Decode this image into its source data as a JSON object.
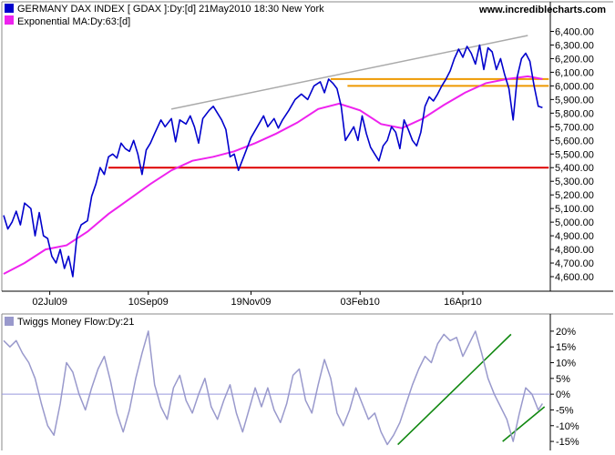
{
  "site": "www.incrediblecharts.com",
  "colors": {
    "price": "#0000cc",
    "ema": "#ee22ee",
    "support": "#dd0000",
    "resistance": "#ee9900",
    "trend_gray": "#aaaaaa",
    "mf": "#9999cc",
    "mf_trend": "#118811",
    "zero_line": "#9999dd"
  },
  "chart_data": [
    {
      "type": "line",
      "legend": [
        {
          "text": "GERMANY DAX INDEX [ GDAX ]:Dy:[d]  21May2010 18:30 New York",
          "color": "#0000cc"
        },
        {
          "text": "Exponential MA:Dy:63:[d]",
          "color": "#ee22ee"
        }
      ],
      "x_tick_labels": [
        "02Jul09",
        "10Sep09",
        "19Nov09",
        "03Feb10",
        "16Apr10"
      ],
      "x_tick_positions": [
        22,
        69,
        118,
        170,
        219
      ],
      "x_range": [
        0,
        259
      ],
      "y_tick_labels": [
        "6,400.00",
        "6,300.00",
        "6,200.00",
        "6,100.00",
        "6,000.00",
        "5,900.00",
        "5,800.00",
        "5,700.00",
        "5,600.00",
        "5,500.00",
        "5,400.00",
        "5,300.00",
        "5,200.00",
        "5,100.00",
        "5,000.00",
        "4,900.00",
        "4,800.00",
        "4,700.00",
        "4,600.00"
      ],
      "ylim": [
        4520,
        6430
      ],
      "grid": false,
      "series": [
        {
          "name": "GERMANY DAX INDEX",
          "color": "#0000cc",
          "x": [
            0,
            2,
            4,
            6,
            8,
            10,
            13,
            15,
            17,
            19,
            21,
            23,
            25,
            27,
            29,
            31,
            33,
            35,
            37,
            40,
            42,
            44,
            46,
            48,
            50,
            52,
            54,
            56,
            58,
            60,
            62,
            64,
            66,
            68,
            70,
            72,
            75,
            77,
            80,
            82,
            84,
            87,
            89,
            91,
            93,
            95,
            98,
            100,
            102,
            104,
            106,
            108,
            110,
            112,
            115,
            118,
            121,
            124,
            126,
            129,
            131,
            133,
            136,
            139,
            142,
            145,
            148,
            151,
            153,
            155,
            157,
            159,
            161,
            163,
            165,
            167,
            169,
            171,
            173,
            175,
            177,
            179,
            181,
            183,
            185,
            187,
            189,
            191,
            193,
            195,
            197,
            199,
            201,
            203,
            205,
            207,
            209,
            211,
            213,
            215,
            217,
            219,
            221,
            223,
            225,
            227,
            229,
            231,
            233,
            235,
            237,
            239,
            241,
            243,
            245,
            247,
            249,
            251,
            253,
            255,
            257
          ],
          "y": [
            5050,
            4950,
            5000,
            5080,
            4980,
            5140,
            5100,
            4900,
            5070,
            4900,
            4880,
            4750,
            4700,
            4800,
            4660,
            4750,
            4600,
            4900,
            4980,
            5010,
            5190,
            5280,
            5400,
            5350,
            5480,
            5500,
            5470,
            5580,
            5540,
            5520,
            5600,
            5500,
            5350,
            5530,
            5580,
            5650,
            5750,
            5700,
            5760,
            5590,
            5750,
            5720,
            5780,
            5700,
            5580,
            5760,
            5820,
            5850,
            5800,
            5750,
            5680,
            5480,
            5500,
            5380,
            5500,
            5620,
            5700,
            5780,
            5700,
            5760,
            5690,
            5750,
            5820,
            5900,
            5940,
            5900,
            6000,
            6030,
            5950,
            6050,
            6020,
            5980,
            5850,
            5600,
            5650,
            5700,
            5600,
            5780,
            5650,
            5550,
            5500,
            5450,
            5560,
            5600,
            5700,
            5660,
            5540,
            5750,
            5680,
            5600,
            5560,
            5660,
            5850,
            5920,
            5890,
            5940,
            6000,
            6050,
            6110,
            6200,
            6270,
            6210,
            6290,
            6240,
            6160,
            6300,
            6120,
            6280,
            6250,
            6120,
            6200,
            6080,
            5980,
            5750,
            6070,
            6200,
            6240,
            6180,
            6000,
            5850,
            5840
          ]
        },
        {
          "name": "Exponential MA:Dy:63:[d]",
          "color": "#ee22ee",
          "x": [
            0,
            10,
            20,
            30,
            40,
            50,
            60,
            70,
            80,
            90,
            100,
            110,
            120,
            130,
            140,
            150,
            160,
            170,
            180,
            190,
            200,
            210,
            220,
            230,
            240,
            250,
            257
          ],
          "y": [
            4620,
            4700,
            4800,
            4830,
            4930,
            5060,
            5170,
            5280,
            5380,
            5450,
            5480,
            5520,
            5580,
            5650,
            5730,
            5830,
            5870,
            5820,
            5720,
            5690,
            5760,
            5860,
            5950,
            6020,
            6050,
            6070,
            6050
          ]
        }
      ],
      "overlays": [
        {
          "kind": "support",
          "x": [
            50,
            260
          ],
          "y": [
            5400,
            5400
          ]
        },
        {
          "kind": "resistance",
          "x": [
            156,
            260
          ],
          "y": [
            6050,
            6050
          ]
        },
        {
          "kind": "resistance",
          "x": [
            164,
            260
          ],
          "y": [
            6000,
            6000
          ]
        },
        {
          "kind": "trend",
          "x": [
            80,
            250
          ],
          "y": [
            5830,
            6370
          ]
        }
      ]
    },
    {
      "type": "line",
      "legend": [
        {
          "text": "Twiggs Money Flow:Dy:21",
          "color": "#9999cc"
        }
      ],
      "x_range": [
        0,
        259
      ],
      "y_tick_labels": [
        "20%",
        "15%",
        "10%",
        "5%",
        "0%",
        "-5%",
        "-10%",
        "-15%"
      ],
      "ylim": [
        -17,
        22
      ],
      "series": [
        {
          "name": "Twiggs Money Flow:Dy:21",
          "color": "#9999cc",
          "x": [
            0,
            3,
            6,
            9,
            12,
            15,
            18,
            21,
            24,
            27,
            30,
            33,
            36,
            39,
            42,
            45,
            48,
            51,
            54,
            57,
            60,
            63,
            66,
            69,
            72,
            75,
            78,
            81,
            84,
            87,
            90,
            93,
            96,
            99,
            102,
            105,
            108,
            111,
            114,
            117,
            120,
            123,
            126,
            129,
            132,
            135,
            138,
            141,
            144,
            147,
            150,
            153,
            156,
            159,
            162,
            165,
            168,
            171,
            174,
            177,
            180,
            183,
            186,
            189,
            192,
            195,
            198,
            201,
            204,
            207,
            210,
            213,
            216,
            219,
            222,
            225,
            228,
            231,
            234,
            237,
            240,
            243,
            246,
            249,
            252,
            255,
            257
          ],
          "y": [
            17,
            15,
            17,
            13,
            10,
            5,
            -3,
            -10,
            -13,
            -3,
            10,
            7,
            0,
            -5,
            2,
            8,
            12,
            4,
            -6,
            -12,
            -5,
            5,
            13,
            20,
            3,
            -4,
            -8,
            2,
            6,
            -2,
            -6,
            0,
            5,
            -4,
            -8,
            -2,
            3,
            -6,
            -12,
            -5,
            2,
            -4,
            2,
            -5,
            -9,
            -3,
            6,
            8,
            -2,
            -6,
            3,
            11,
            5,
            -6,
            -10,
            -5,
            2,
            -3,
            -8,
            -6,
            -12,
            -16,
            -13,
            -9,
            -3,
            3,
            8,
            12,
            10,
            16,
            19,
            17,
            18,
            12,
            16,
            20,
            13,
            5,
            0,
            -4,
            -8,
            -15,
            -6,
            2,
            0,
            -5,
            -3
          ]
        }
      ],
      "overlays": [
        {
          "kind": "zero",
          "x": [
            0,
            259
          ],
          "y": [
            0,
            0
          ]
        },
        {
          "kind": "trend",
          "x": [
            188,
            242
          ],
          "y": [
            -16,
            19
          ]
        },
        {
          "kind": "trend",
          "x": [
            238,
            258
          ],
          "y": [
            -15,
            -4
          ]
        }
      ]
    }
  ]
}
